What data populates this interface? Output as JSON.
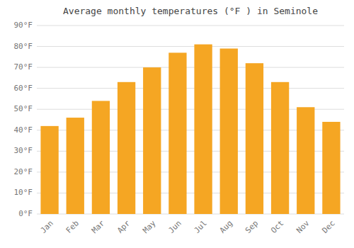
{
  "chart_data": {
    "type": "bar",
    "title": "Average monthly temperatures (°F ) in Seminole",
    "categories": [
      "Jan",
      "Feb",
      "Mar",
      "Apr",
      "May",
      "Jun",
      "Jul",
      "Aug",
      "Sep",
      "Oct",
      "Nov",
      "Dec"
    ],
    "values": [
      42,
      46,
      54,
      63,
      70,
      77,
      81,
      79,
      72,
      63,
      51,
      44
    ],
    "color": "#F5A623",
    "ylim": [
      0,
      90
    ],
    "yticks": [
      {
        "value": 0,
        "label": "0°F"
      },
      {
        "value": 10,
        "label": "10°F"
      },
      {
        "value": 20,
        "label": "20°F"
      },
      {
        "value": 30,
        "label": "30°F"
      },
      {
        "value": 40,
        "label": "40°F"
      },
      {
        "value": 50,
        "label": "50°F"
      },
      {
        "value": 60,
        "label": "60°F"
      },
      {
        "value": 70,
        "label": "70°F"
      },
      {
        "value": 80,
        "label": "80°F"
      },
      {
        "value": 90,
        "label": "90°F"
      }
    ],
    "grid": true
  }
}
